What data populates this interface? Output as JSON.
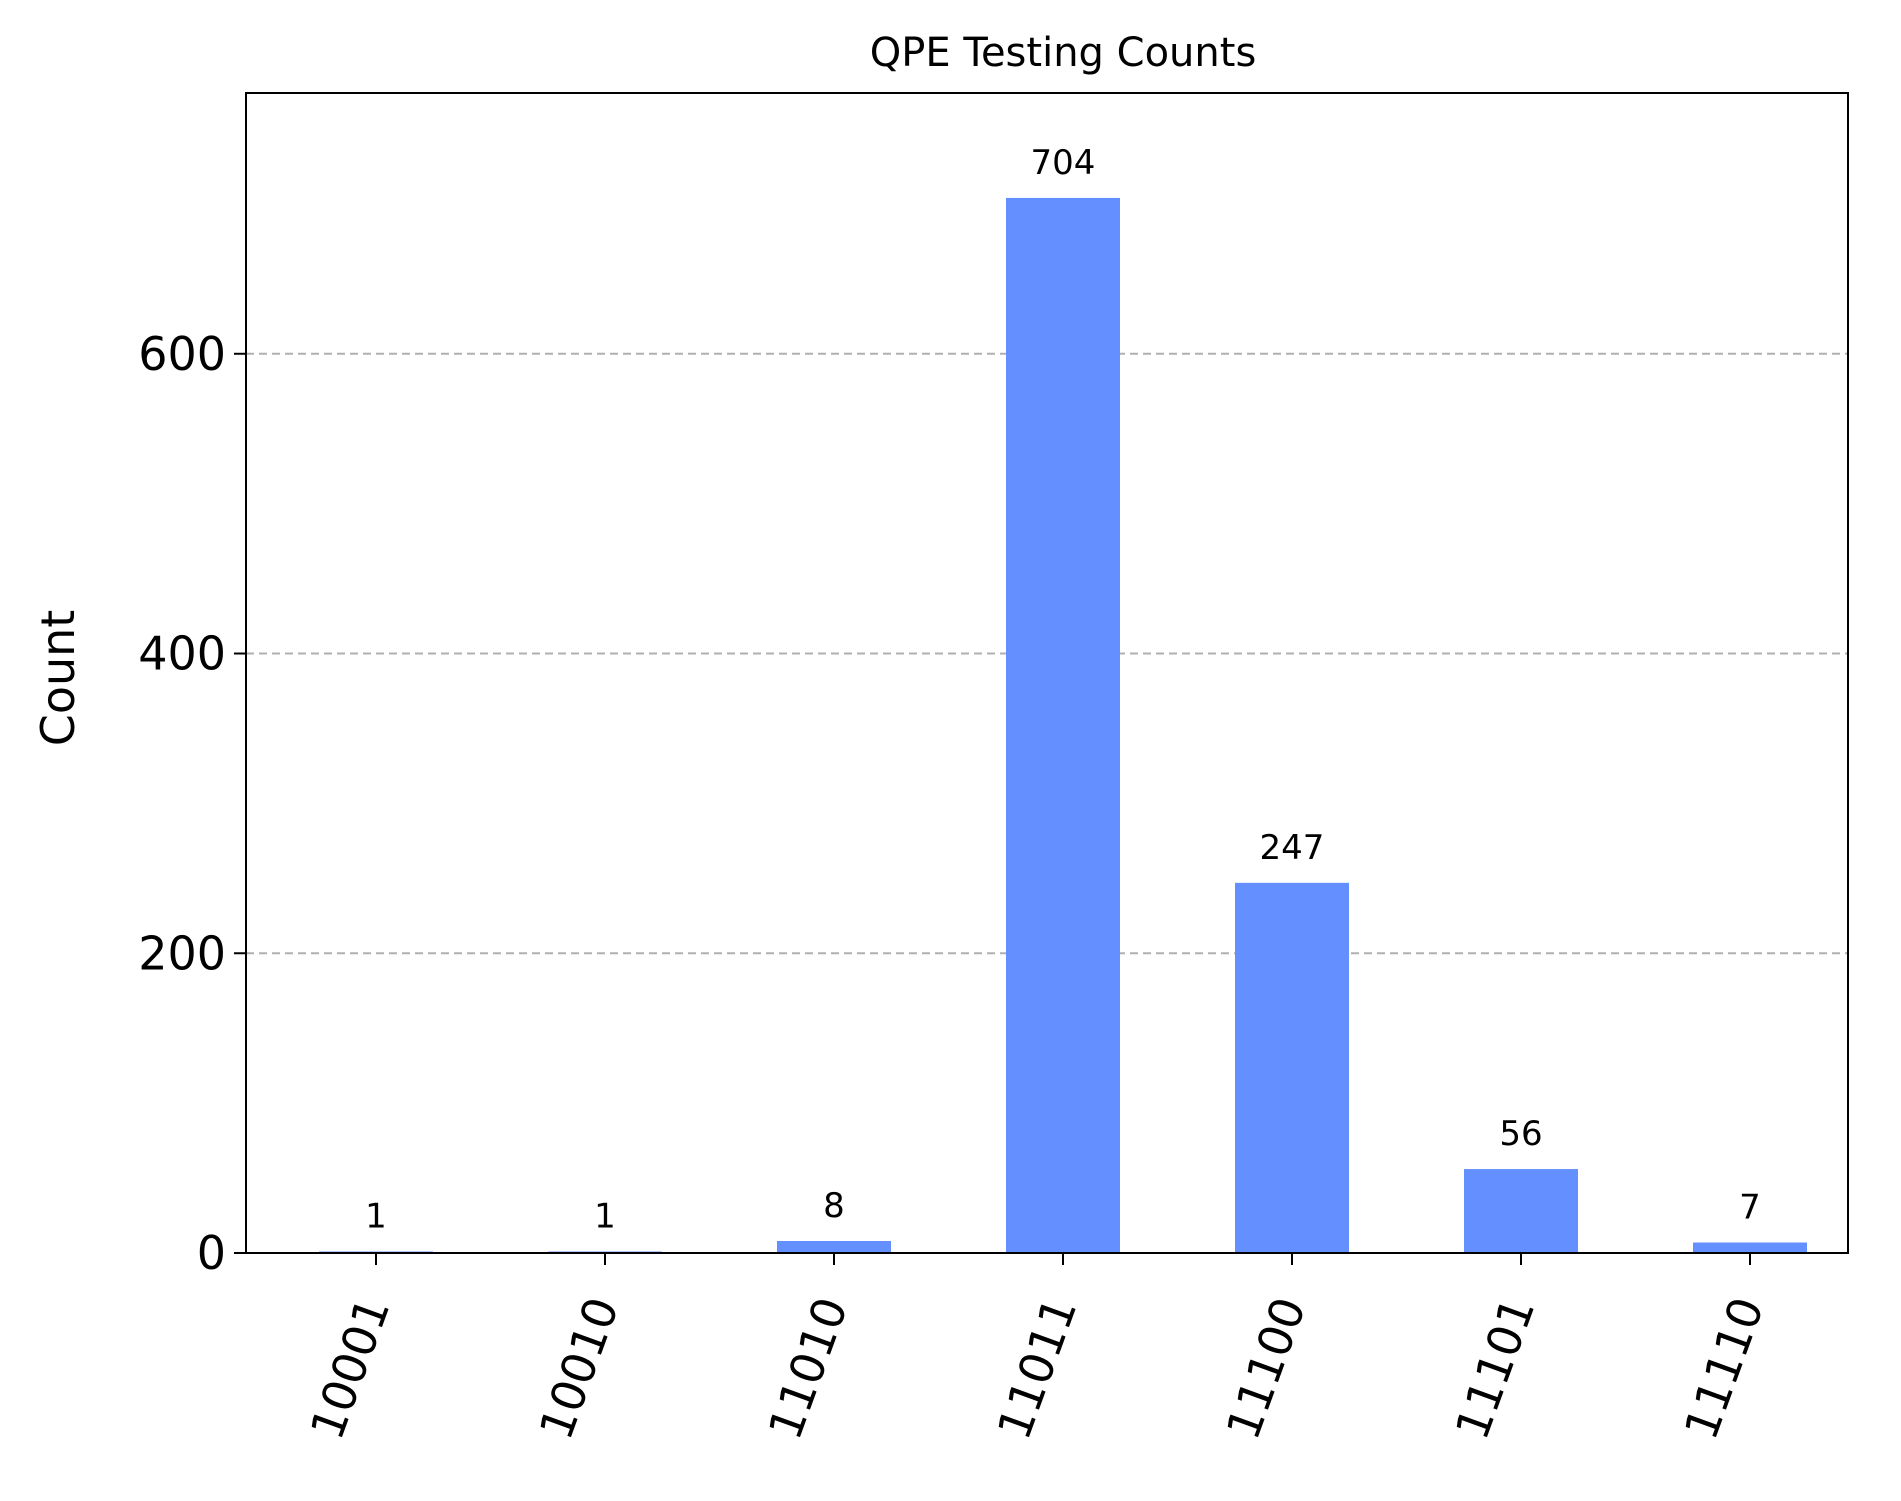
{
  "chart_data": {
    "type": "bar",
    "title": "QPE Testing Counts",
    "xlabel": "",
    "ylabel": "Count",
    "categories": [
      "10001",
      "10010",
      "11010",
      "11011",
      "11100",
      "11101",
      "11110"
    ],
    "values": [
      1,
      1,
      8,
      704,
      247,
      56,
      7
    ],
    "ylim": [
      0,
      774
    ],
    "yticks": [
      0,
      200,
      400,
      600
    ],
    "grid": "y-dashed",
    "bar_color": "#648fff",
    "grid_color": "#b0b0b0"
  }
}
